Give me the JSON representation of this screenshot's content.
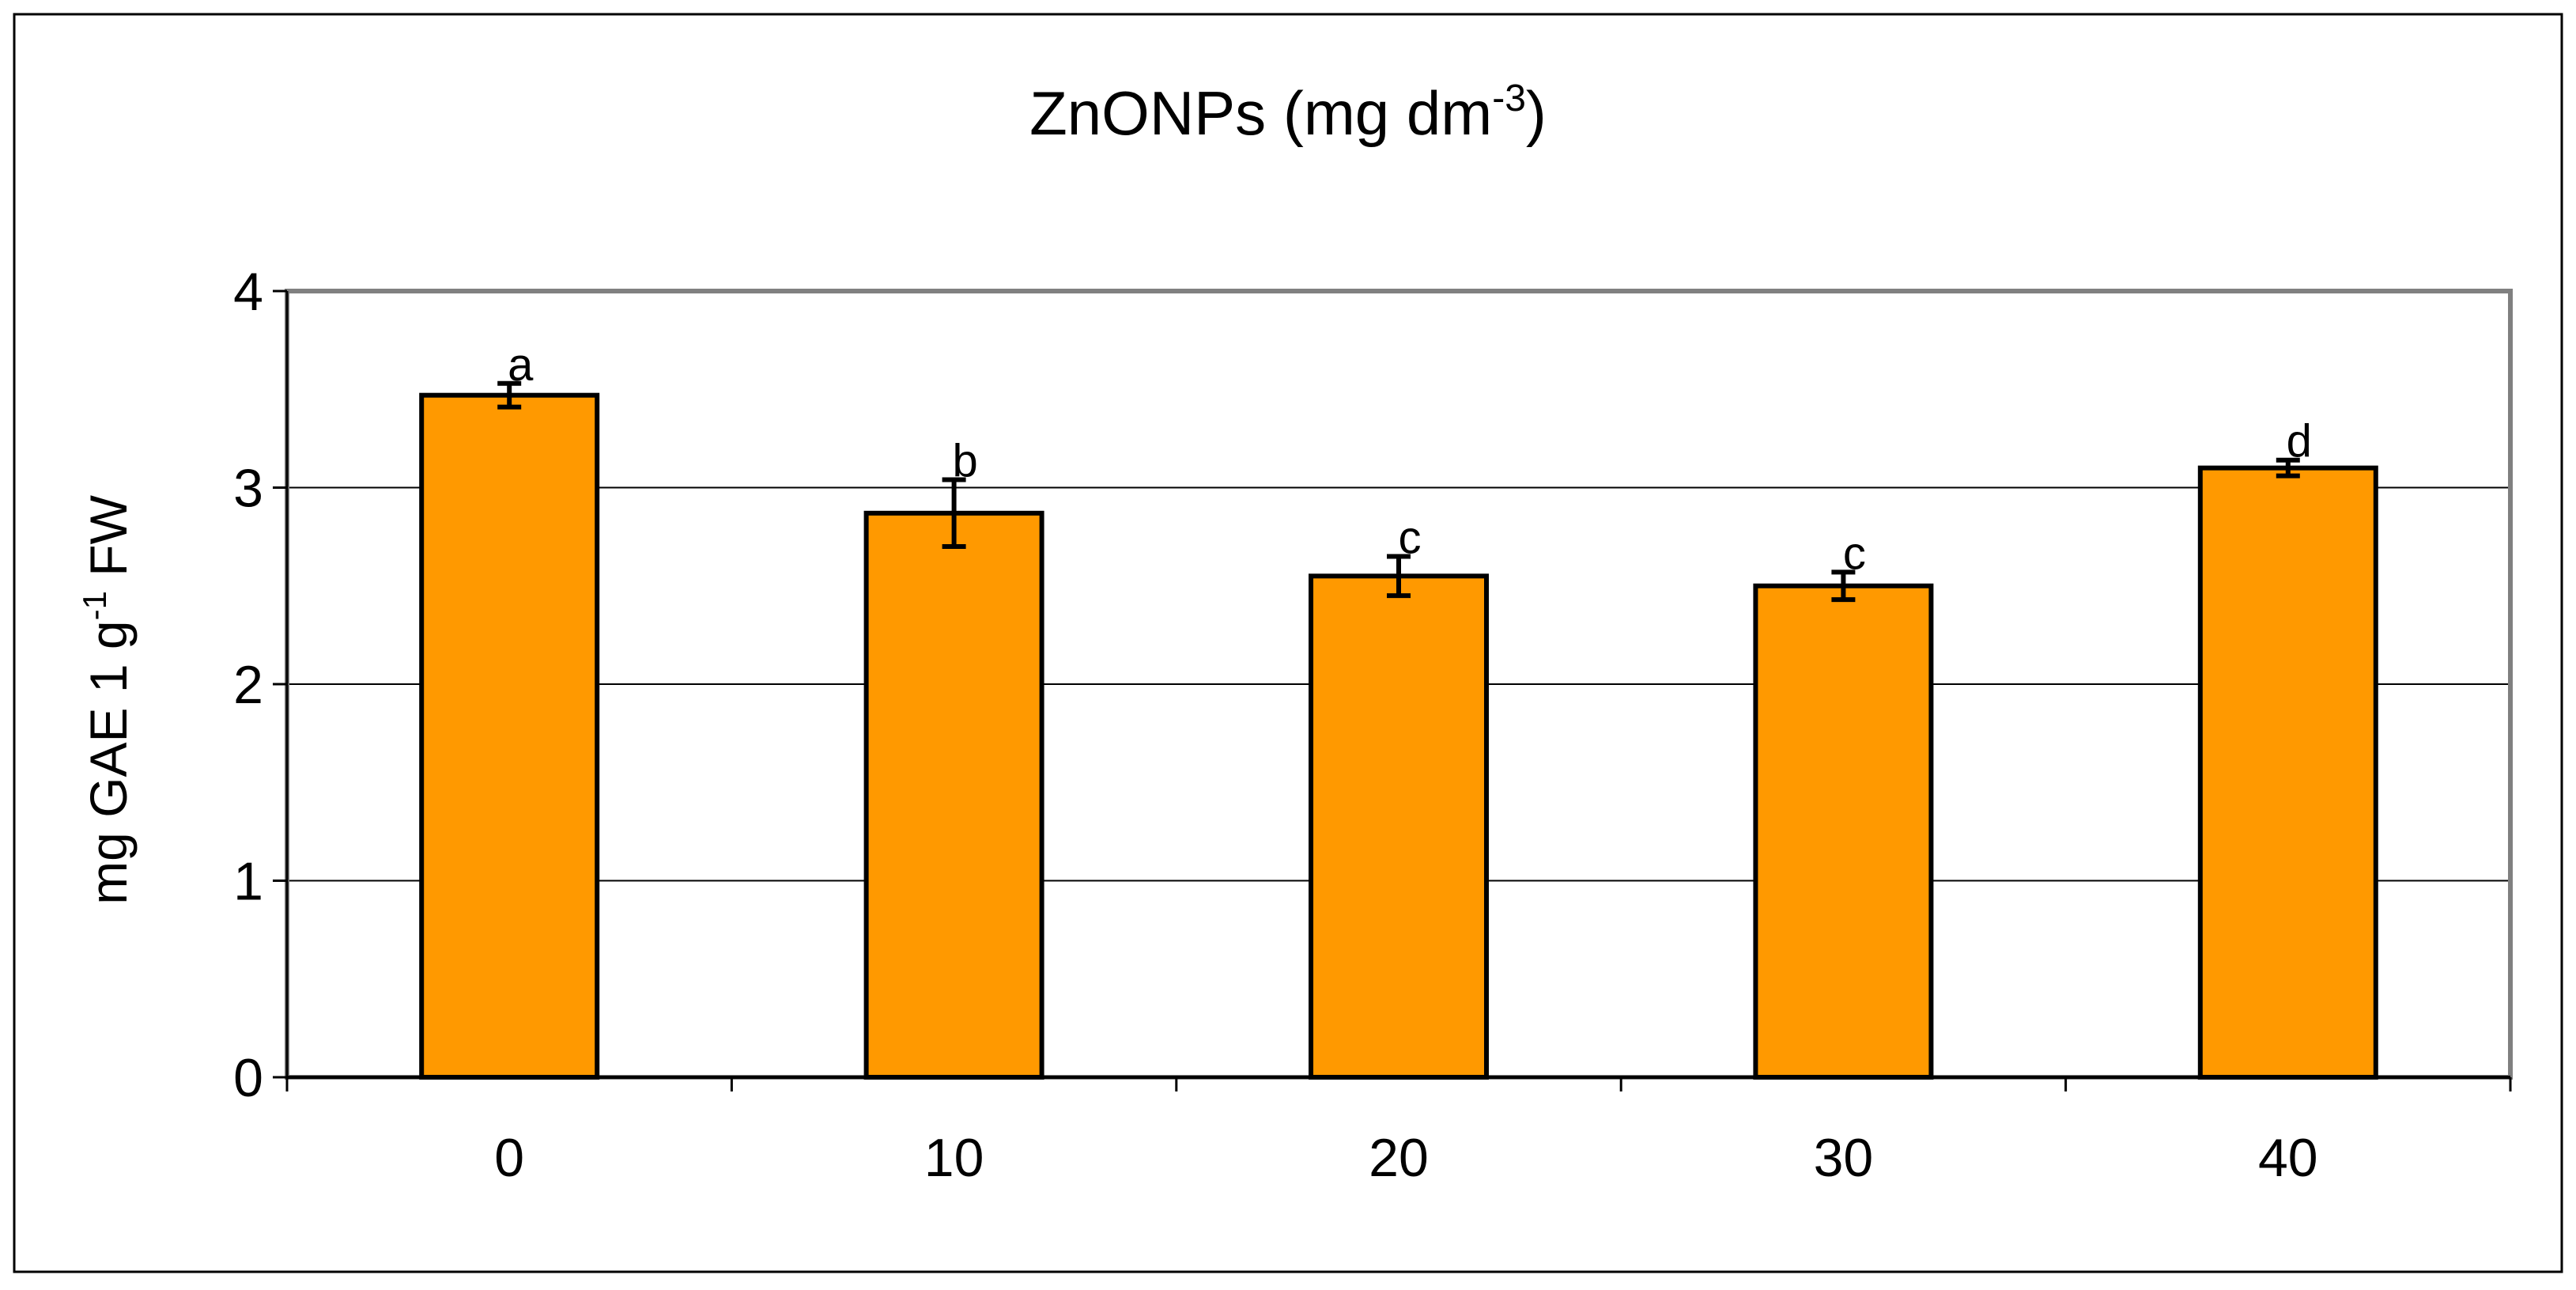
{
  "chart_data": {
    "type": "bar",
    "title": "ZnONPs (mg dm",
    "title_sup": "-3",
    "title_end": ")",
    "ylabel": "mg GAE 1 g",
    "ylabel_sup": "-1",
    "ylabel_end": " FW",
    "xlabel": "",
    "categories": [
      "0",
      "10",
      "20",
      "30",
      "40"
    ],
    "values": [
      3.47,
      2.87,
      2.55,
      2.5,
      3.1
    ],
    "errors": [
      0.06,
      0.17,
      0.1,
      0.07,
      0.04
    ],
    "significance_letters": [
      "a",
      "b",
      "c",
      "c",
      "d"
    ],
    "ylim": [
      0,
      4
    ],
    "yticks": [
      "0",
      "1",
      "2",
      "3",
      "4"
    ],
    "grid": true,
    "bar_color": "#FF9900",
    "bar_edge_color": "#000000",
    "frame_color": "#808080"
  }
}
